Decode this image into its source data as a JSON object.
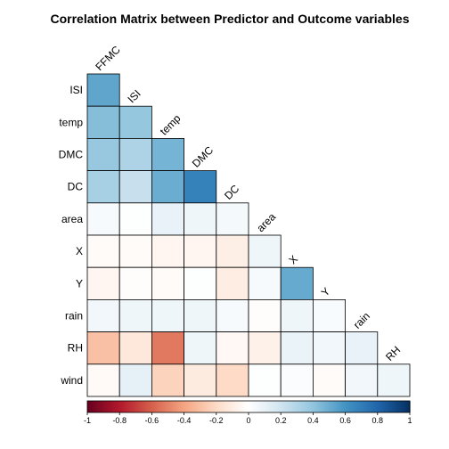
{
  "chart_data": {
    "type": "heatmap",
    "title": "Correlation Matrix between Predictor and Outcome variables",
    "row_labels": [
      "ISI",
      "temp",
      "DMC",
      "DC",
      "area",
      "X",
      "Y",
      "rain",
      "RH",
      "wind"
    ],
    "col_labels": [
      "FFMC",
      "ISI",
      "temp",
      "DMC",
      "DC",
      "area",
      "X",
      "Y",
      "rain",
      "RH"
    ],
    "layout": "lower-triangle",
    "values": [
      [
        0.53
      ],
      [
        0.43,
        0.39
      ],
      [
        0.38,
        0.31,
        0.47
      ],
      [
        0.33,
        0.23,
        0.5,
        0.68
      ],
      [
        0.04,
        0.01,
        0.1,
        0.07,
        0.05
      ],
      [
        -0.02,
        -0.02,
        -0.05,
        -0.05,
        -0.09,
        0.07
      ],
      [
        -0.05,
        -0.01,
        -0.02,
        0.01,
        -0.1,
        0.04,
        0.51
      ],
      [
        0.06,
        0.07,
        0.07,
        0.07,
        0.04,
        -0.01,
        0.07,
        0.03
      ],
      [
        -0.3,
        -0.13,
        -0.53,
        0.07,
        -0.04,
        -0.08,
        0.09,
        0.06,
        0.1
      ],
      [
        -0.03,
        0.11,
        -0.23,
        -0.11,
        -0.2,
        0.01,
        0.02,
        -0.02,
        0.06,
        0.07
      ]
    ],
    "colorbar": {
      "min": -1,
      "max": 1,
      "ticks": [
        -1,
        -0.8,
        -0.6,
        -0.4,
        -0.2,
        0,
        0.2,
        0.4,
        0.6,
        0.8,
        1
      ],
      "tick_labels": [
        "-1",
        "-0.8",
        "-0.6",
        "-0.4",
        "-0.2",
        "0",
        "0.2",
        "0.4",
        "0.6",
        "0.8",
        "1"
      ],
      "colors": [
        "#67001f",
        "#b2182b",
        "#d6604d",
        "#f4a582",
        "#fddbc7",
        "#ffffff",
        "#d1e5f0",
        "#92c5de",
        "#4393c3",
        "#2166ac",
        "#053061"
      ]
    },
    "grid": true,
    "legend": "bottom"
  }
}
